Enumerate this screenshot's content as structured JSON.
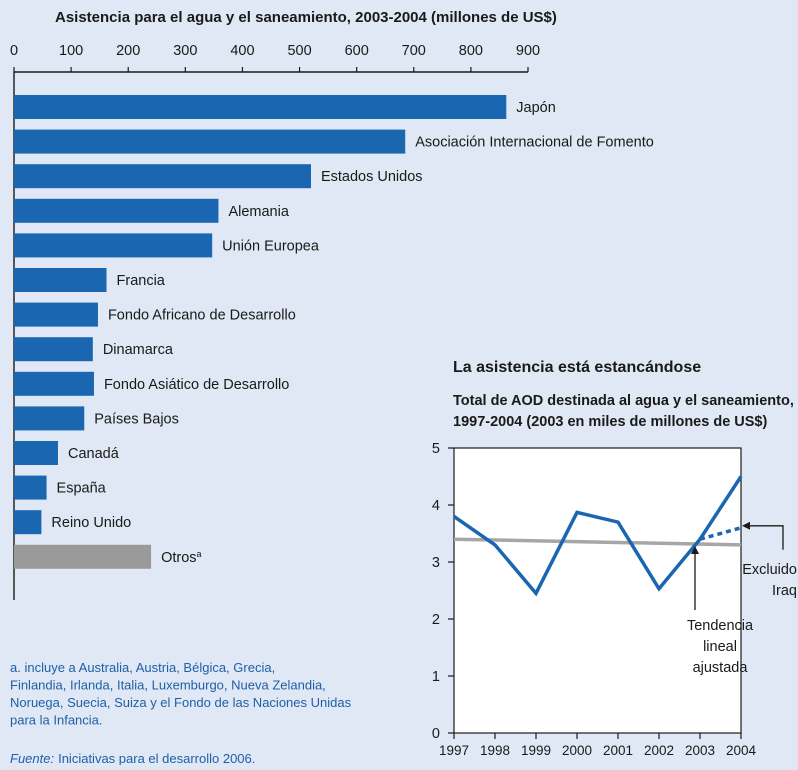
{
  "colors": {
    "bar": "#1b66b1",
    "bar_other": "#9a9a9a",
    "line": "#1b66b1",
    "trend": "#a6a6a6",
    "note_text": "#1f5fa8"
  },
  "chart_data": [
    {
      "type": "bar",
      "orientation": "horizontal",
      "title": "Asistencia para el agua y el saneamiento, 2003-2004 (millones de US$)",
      "xlim": [
        0,
        900
      ],
      "xticks": [
        0,
        100,
        200,
        300,
        400,
        500,
        600,
        700,
        800,
        900
      ],
      "categories": [
        "Japón",
        "Asociación Internacional de Fomento",
        "Estados Unidos",
        "Alemania",
        "Unión Europea",
        "Francia",
        "Fondo Africano de Desarrollo",
        "Dinamarca",
        "Fondo Asiático de Desarrollo",
        "Países Bajos",
        "Canadá",
        "España",
        "Reino Unido",
        "Otros"
      ],
      "label_superscripts": [
        "",
        "",
        "",
        "",
        "",
        "",
        "",
        "",
        "",
        "",
        "",
        "",
        "",
        "a"
      ],
      "values": [
        862,
        685,
        520,
        358,
        347,
        162,
        147,
        138,
        140,
        123,
        77,
        57,
        48,
        240
      ],
      "highlight": [
        false,
        false,
        false,
        false,
        false,
        false,
        false,
        false,
        false,
        false,
        false,
        false,
        false,
        true
      ],
      "grid": false
    },
    {
      "type": "line",
      "heading": "La asistencia está estancándose",
      "title": "Total de AOD destinada al agua y el saneamiento, 1997-2004 (2003 en miles de millones de US$)",
      "x": [
        "1997",
        "1998",
        "1999",
        "2000",
        "2001",
        "2002",
        "2003",
        "2004"
      ],
      "ylim": [
        0,
        5
      ],
      "yticks": [
        0,
        1,
        2,
        3,
        4,
        5
      ],
      "series": [
        {
          "values": [
            3.8,
            3.3,
            2.45,
            3.87,
            3.7,
            2.53,
            3.4,
            4.5
          ],
          "style": "solid"
        },
        {
          "name": "Excluido Iraq",
          "x": [
            "2003",
            "2004"
          ],
          "values": [
            3.4,
            3.6
          ],
          "style": "dashed"
        },
        {
          "name": "Tendencia lineal ajustada",
          "x": [
            "1997",
            "2004"
          ],
          "values": [
            3.4,
            3.3
          ],
          "style": "trend"
        }
      ],
      "annotations": [
        {
          "text": [
            "Excluido",
            "Iraq"
          ],
          "points_to": "Excluido Iraq"
        },
        {
          "text": [
            "Tendencia",
            "lineal",
            "ajustada"
          ],
          "points_to": "Tendencia lineal ajustada"
        }
      ],
      "grid": false
    }
  ],
  "footnote": "a. incluye a Australia, Austria, Bélgica, Grecia, Finlandia, Irlanda, Italia, Luxemburgo, Nueva Zelandia, Noruega, Suecia, Suiza y el Fondo de las Naciones Unidas para la Infancia.",
  "source": {
    "label": "Fuente:",
    "text": "Iniciativas para el desarrollo 2006."
  }
}
